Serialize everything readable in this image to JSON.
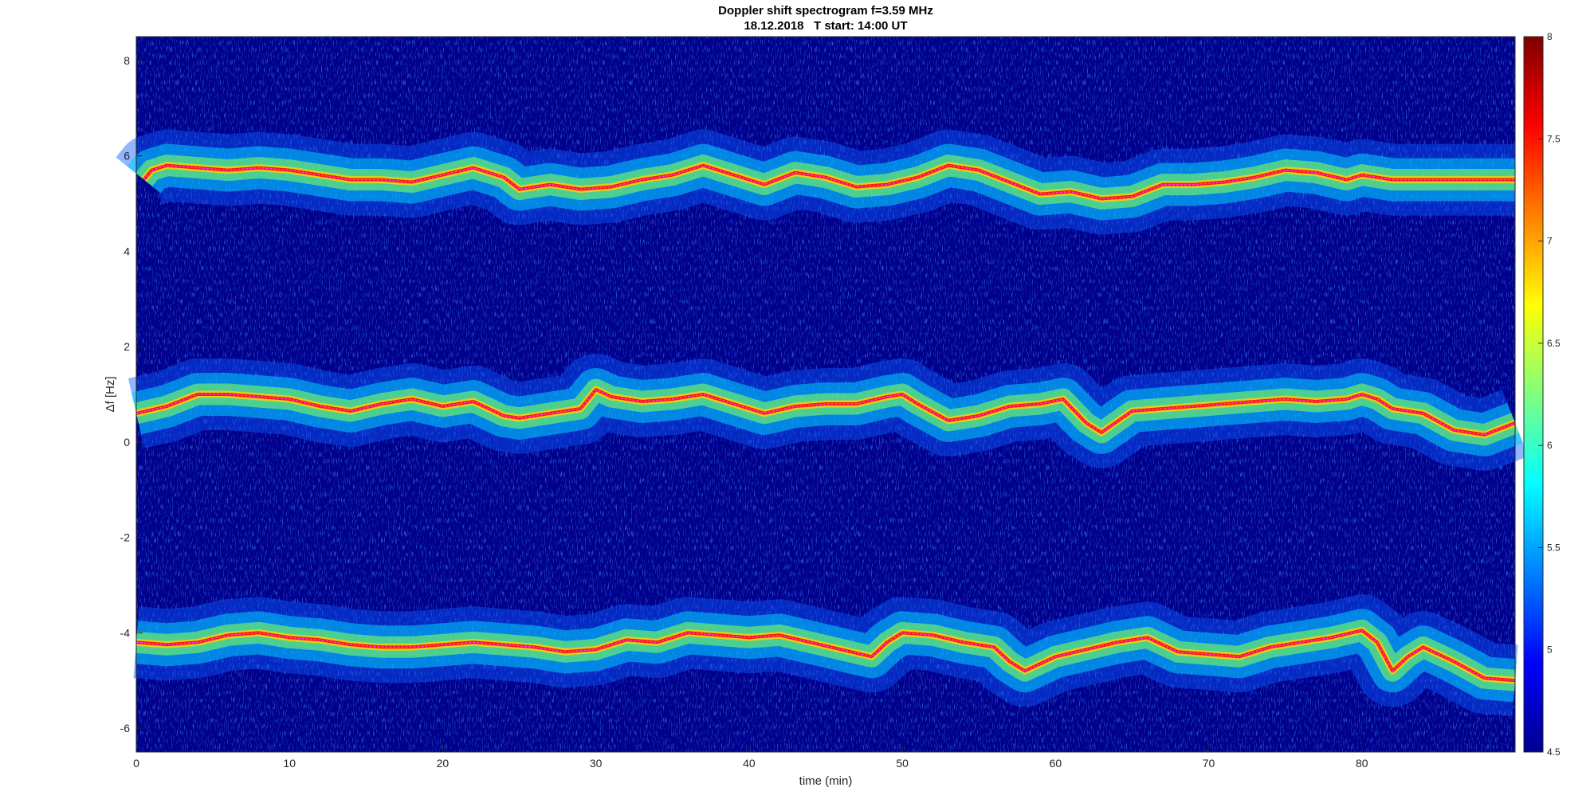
{
  "chart_data": {
    "type": "heatmap",
    "title": "Doppler shift spectrogram f=3.59 MHz",
    "subtitle": "18.12.2018   T start: 14:00 UT",
    "xlabel": "time (min)",
    "ylabel": "Δf [Hz]",
    "xlim": [
      0,
      90
    ],
    "ylim": [
      -6.5,
      8.5
    ],
    "x_ticks": [
      0,
      10,
      20,
      30,
      40,
      50,
      60,
      70,
      80
    ],
    "y_ticks": [
      8,
      6,
      4,
      2,
      0,
      -2,
      -4,
      -6
    ],
    "colorbar": {
      "colormap": "jet",
      "limits": [
        4.5,
        8
      ],
      "ticks": [
        8,
        7.5,
        7,
        6.5,
        6,
        5.5,
        5,
        4.5
      ]
    },
    "background_level": 4.6,
    "series": [
      {
        "x": [
          0.5,
          1,
          2,
          4,
          6,
          8,
          10,
          12,
          14,
          16,
          18,
          20,
          22,
          24,
          25,
          27,
          29,
          31,
          33,
          35,
          37,
          39,
          41,
          43,
          45,
          47,
          49,
          51,
          53,
          55,
          57,
          59,
          61,
          63,
          65,
          67,
          69,
          71,
          73,
          75,
          77,
          79,
          80,
          82,
          84,
          86,
          88,
          90
        ],
        "values": [
          5.5,
          5.7,
          5.8,
          5.75,
          5.7,
          5.75,
          5.7,
          5.6,
          5.5,
          5.5,
          5.45,
          5.6,
          5.75,
          5.55,
          5.3,
          5.4,
          5.3,
          5.35,
          5.5,
          5.6,
          5.8,
          5.6,
          5.4,
          5.65,
          5.55,
          5.35,
          5.4,
          5.55,
          5.8,
          5.7,
          5.45,
          5.2,
          5.25,
          5.1,
          5.15,
          5.4,
          5.4,
          5.45,
          5.55,
          5.7,
          5.65,
          5.5,
          5.6,
          5.5,
          5.5,
          5.5,
          5.5,
          5.5
        ]
      },
      {
        "x": [
          0,
          2,
          4,
          6,
          8,
          10,
          12,
          14,
          16,
          18,
          20,
          22,
          24,
          25,
          27,
          29,
          30,
          31,
          33,
          35,
          37,
          39,
          41,
          43,
          45,
          47,
          49,
          50,
          51,
          53,
          55,
          57,
          59,
          60.5,
          62,
          63,
          65,
          67,
          69,
          71,
          73,
          75,
          77,
          79,
          80,
          81,
          82,
          84,
          86,
          88,
          90
        ],
        "values": [
          0.6,
          0.75,
          1.0,
          1.0,
          0.95,
          0.9,
          0.75,
          0.65,
          0.8,
          0.9,
          0.75,
          0.85,
          0.55,
          0.5,
          0.6,
          0.7,
          1.1,
          0.95,
          0.85,
          0.9,
          1.0,
          0.8,
          0.6,
          0.75,
          0.8,
          0.8,
          0.95,
          1.0,
          0.8,
          0.45,
          0.55,
          0.75,
          0.8,
          0.9,
          0.4,
          0.2,
          0.65,
          0.7,
          0.75,
          0.8,
          0.85,
          0.9,
          0.85,
          0.9,
          1.0,
          0.9,
          0.7,
          0.6,
          0.25,
          0.15,
          0.4
        ]
      },
      {
        "x": [
          0,
          2,
          4,
          6,
          8,
          10,
          12,
          14,
          16,
          18,
          20,
          22,
          24,
          26,
          28,
          30,
          32,
          34,
          36,
          38,
          40,
          42,
          44,
          46,
          48,
          49,
          50,
          52,
          54,
          56,
          57,
          58,
          60,
          62,
          64,
          66,
          68,
          70,
          72,
          74,
          76,
          78,
          80,
          81,
          82,
          83,
          84,
          86,
          88,
          90
        ],
        "values": [
          -4.2,
          -4.25,
          -4.2,
          -4.05,
          -4.0,
          -4.1,
          -4.15,
          -4.25,
          -4.3,
          -4.3,
          -4.25,
          -4.2,
          -4.25,
          -4.3,
          -4.4,
          -4.35,
          -4.15,
          -4.2,
          -4.0,
          -4.05,
          -4.1,
          -4.05,
          -4.2,
          -4.35,
          -4.5,
          -4.2,
          -4.0,
          -4.05,
          -4.2,
          -4.3,
          -4.6,
          -4.8,
          -4.5,
          -4.35,
          -4.2,
          -4.1,
          -4.4,
          -4.45,
          -4.5,
          -4.3,
          -4.2,
          -4.1,
          -3.95,
          -4.2,
          -4.8,
          -4.5,
          -4.3,
          -4.6,
          -4.95,
          -5.0
        ]
      }
    ]
  }
}
